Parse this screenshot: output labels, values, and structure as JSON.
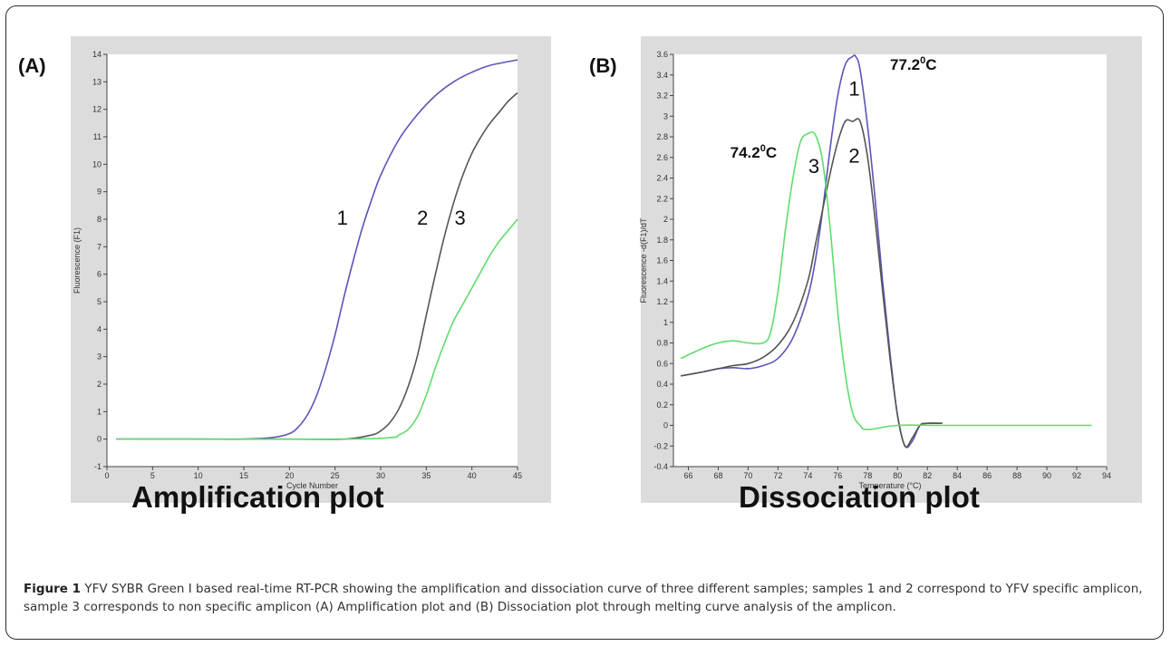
{
  "chart_data": [
    {
      "type": "line",
      "panel_label": "(A)",
      "title": "Amplification plot",
      "xlabel": "Cycle Number",
      "ylabel": "Fluorescence (F1)",
      "xlim": [
        0,
        45
      ],
      "ylim": [
        -1,
        14
      ],
      "xticks": [
        0,
        5,
        10,
        15,
        20,
        25,
        30,
        35,
        40,
        45
      ],
      "yticks": [
        -1,
        0,
        1,
        2,
        3,
        4,
        5,
        6,
        7,
        8,
        9,
        10,
        11,
        12,
        13,
        14
      ],
      "series": [
        {
          "name": "1",
          "color": "#5a55b8",
          "x": [
            1,
            10,
            15,
            18,
            20,
            21,
            22,
            23,
            24,
            25,
            26,
            27,
            28,
            29,
            30,
            32,
            34,
            36,
            38,
            40,
            42,
            45
          ],
          "y": [
            0,
            0,
            0,
            0.05,
            0.2,
            0.45,
            0.9,
            1.6,
            2.6,
            3.8,
            5.2,
            6.5,
            7.7,
            8.7,
            9.6,
            10.9,
            11.8,
            12.5,
            13.0,
            13.35,
            13.6,
            13.8
          ]
        },
        {
          "name": "2",
          "color": "#555555",
          "x": [
            1,
            20,
            26,
            29,
            30,
            31,
            32,
            33,
            34,
            35,
            36,
            37,
            38,
            39,
            40,
            41,
            42,
            43,
            44,
            45
          ],
          "y": [
            0,
            0,
            0,
            0.15,
            0.3,
            0.6,
            1.1,
            1.9,
            3.0,
            4.5,
            6.0,
            7.4,
            8.6,
            9.6,
            10.4,
            11.0,
            11.5,
            11.9,
            12.3,
            12.6
          ]
        },
        {
          "name": "3",
          "color": "#5fdc6e",
          "x": [
            1,
            25,
            31,
            32,
            33,
            34,
            35,
            36,
            37,
            38,
            39,
            40,
            41,
            42,
            43,
            44,
            45
          ],
          "y": [
            0,
            0,
            0.05,
            0.15,
            0.35,
            0.8,
            1.6,
            2.6,
            3.5,
            4.3,
            4.9,
            5.5,
            6.1,
            6.7,
            7.2,
            7.6,
            8.0
          ]
        }
      ],
      "curve_labels": [
        {
          "text": "1",
          "x": 25.8,
          "y": 7.8
        },
        {
          "text": "2",
          "x": 34.6,
          "y": 7.8
        },
        {
          "text": "3",
          "x": 38.7,
          "y": 7.8
        }
      ]
    },
    {
      "type": "line",
      "panel_label": "(B)",
      "title": "Dissociation plot",
      "xlabel": "Temperature (°C)",
      "ylabel": "Fluorescence -d(F1)/dT",
      "xlim": [
        65,
        94
      ],
      "ylim": [
        -0.4,
        3.6
      ],
      "xticks": [
        66,
        68,
        70,
        72,
        74,
        76,
        78,
        80,
        82,
        84,
        86,
        88,
        90,
        92,
        94
      ],
      "yticks": [
        -0.4,
        -0.2,
        0,
        0.2,
        0.4,
        0.6,
        0.8,
        1,
        1.2,
        1.4,
        1.6,
        1.8,
        2,
        2.2,
        2.4,
        2.6,
        2.8,
        3,
        3.2,
        3.4,
        3.6
      ],
      "series": [
        {
          "name": "1",
          "color": "#5a55b8",
          "x": [
            65.5,
            67,
            68,
            69,
            70,
            71,
            72,
            73,
            74,
            74.5,
            75,
            75.5,
            76,
            76.5,
            77,
            77.2,
            77.5,
            78,
            78.5,
            79,
            79.5,
            80,
            80.5,
            81,
            81.5,
            82,
            83
          ],
          "y": [
            0.48,
            0.52,
            0.55,
            0.56,
            0.55,
            0.58,
            0.65,
            0.85,
            1.25,
            1.6,
            2.1,
            2.7,
            3.2,
            3.5,
            3.58,
            3.58,
            3.45,
            2.9,
            2.2,
            1.4,
            0.7,
            0.1,
            -0.2,
            -0.15,
            0.0,
            0.02,
            0.02
          ]
        },
        {
          "name": "2",
          "color": "#555555",
          "x": [
            65.5,
            67,
            68,
            69,
            70,
            71,
            72,
            73,
            74,
            74.5,
            75,
            75.5,
            76,
            76.5,
            77,
            77.5,
            78,
            78.5,
            79,
            79.5,
            80,
            80.5,
            81,
            81.5,
            82,
            83
          ],
          "y": [
            0.48,
            0.52,
            0.55,
            0.58,
            0.6,
            0.66,
            0.78,
            1.0,
            1.4,
            1.75,
            2.1,
            2.45,
            2.75,
            2.95,
            2.95,
            2.95,
            2.6,
            2.0,
            1.3,
            0.65,
            0.1,
            -0.2,
            -0.12,
            0.0,
            0.02,
            0.02
          ]
        },
        {
          "name": "3",
          "color": "#5fdc6e",
          "x": [
            65.5,
            67,
            68,
            69,
            70,
            71,
            71.5,
            72,
            72.5,
            73,
            73.5,
            74,
            74.5,
            75,
            75.5,
            76,
            76.5,
            77,
            77.5,
            78,
            80,
            83,
            86,
            90,
            93
          ],
          "y": [
            0.65,
            0.75,
            0.8,
            0.82,
            0.8,
            0.8,
            0.9,
            1.3,
            1.9,
            2.4,
            2.75,
            2.83,
            2.82,
            2.55,
            1.9,
            1.1,
            0.5,
            0.12,
            0.0,
            -0.04,
            0.0,
            0.0,
            0.0,
            0.0,
            0.0
          ]
        }
      ],
      "curve_labels": [
        {
          "text": "1",
          "x": 77.1,
          "y": 3.2
        },
        {
          "text": "2",
          "x": 77.1,
          "y": 2.55
        },
        {
          "text": "3",
          "x": 74.4,
          "y": 2.45
        }
      ],
      "peak_labels": [
        {
          "base": "77.2",
          "sup": "0",
          "unit": "C",
          "x": 79.5,
          "y": 3.45
        },
        {
          "base": "74.2",
          "sup": "0",
          "unit": "C",
          "x": 68.8,
          "y": 2.6
        }
      ]
    }
  ],
  "caption": {
    "label": "Figure 1",
    "text": " YFV SYBR Green I based real-time RT-PCR showing the amplification and dissociation curve of three different samples; samples 1 and 2 correspond to YFV specific amplicon, sample 3 corresponds to non specific amplicon (A) Amplification plot and (B) Dissociation plot through melting curve analysis of the amplicon."
  },
  "colors": {
    "frame": "#2b2b2b",
    "panel_bg": "#dcdcdc",
    "curve1": "#5a55b8",
    "curve2": "#555555",
    "curve3": "#5fdc6e"
  }
}
